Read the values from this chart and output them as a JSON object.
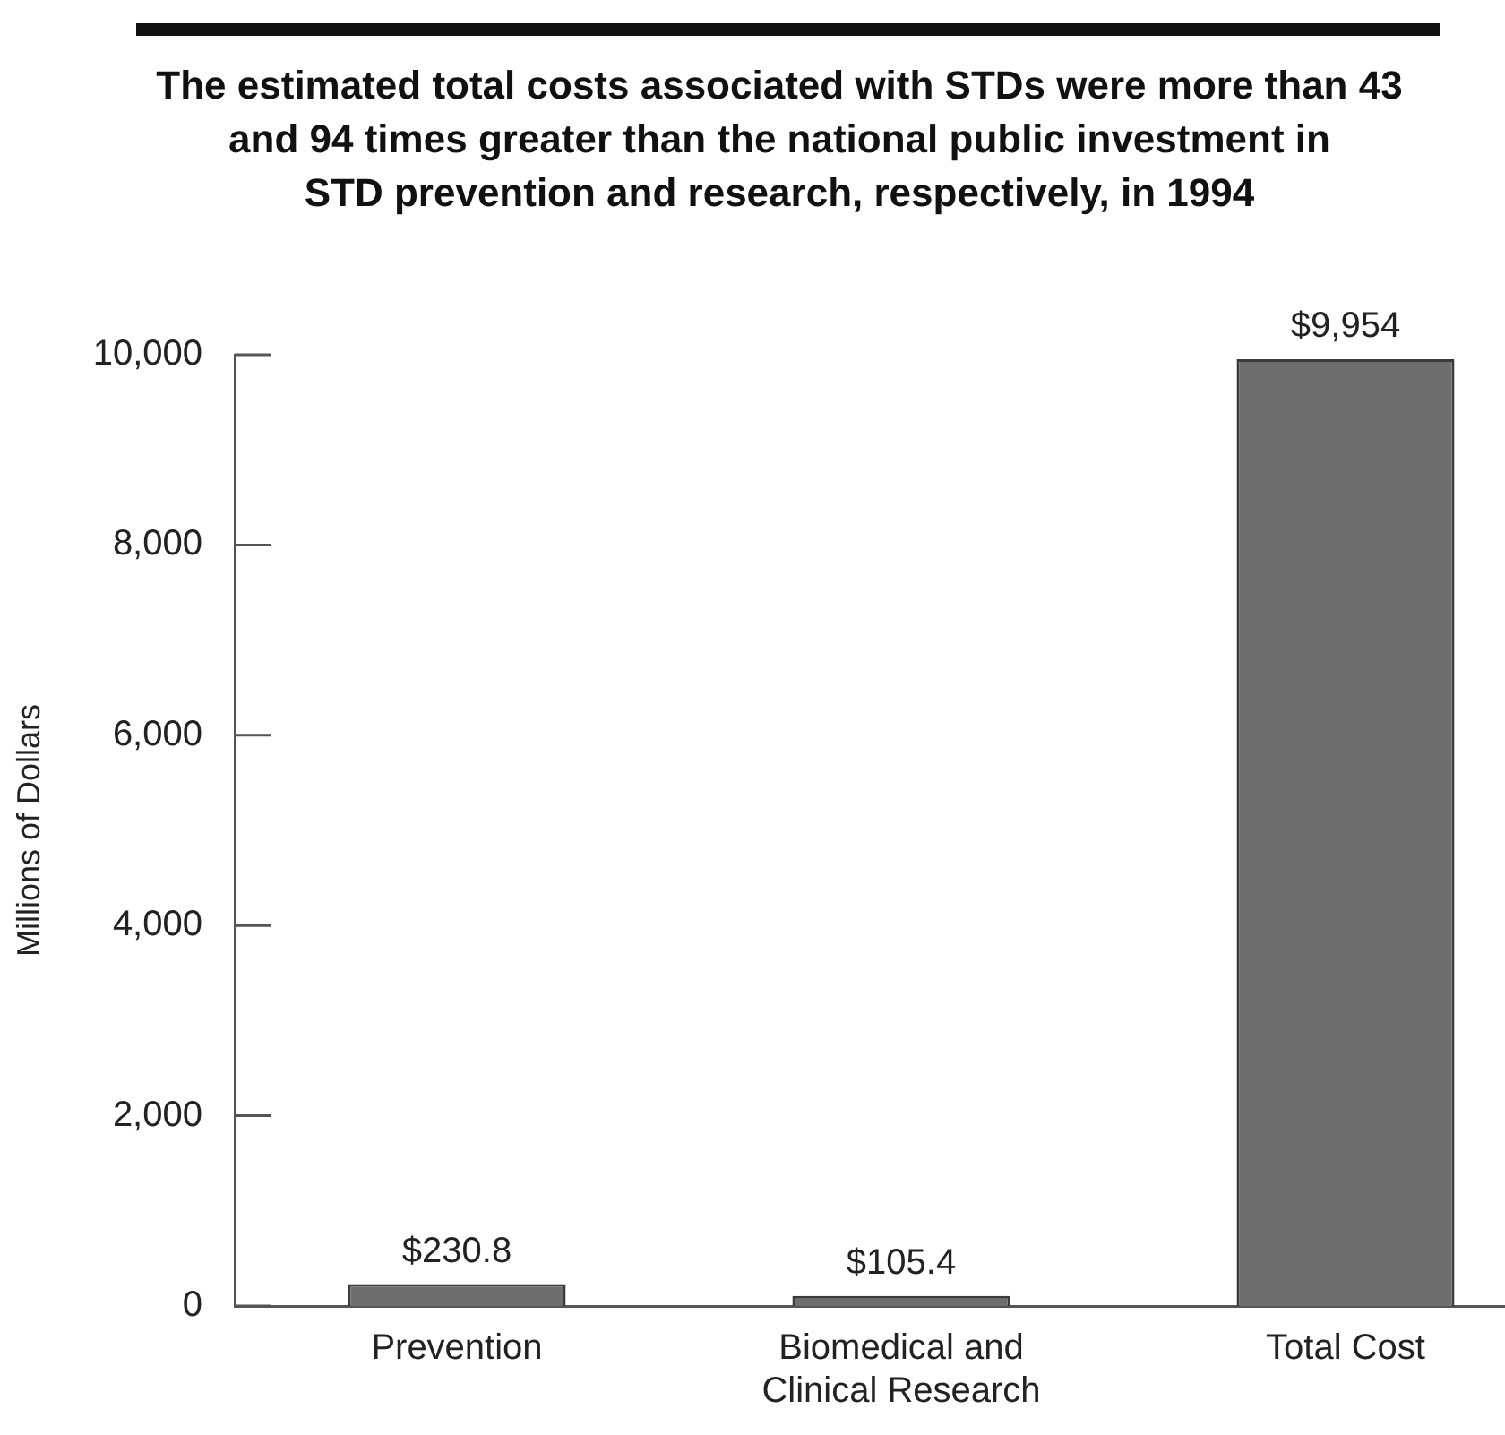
{
  "chart_data": {
    "type": "bar",
    "title": "The estimated total costs associated with STDs were more than 43\nand 94 times greater than the national public investment in\nSTD prevention and research, respectively, in 1994",
    "ylabel": "Millions of Dollars",
    "categories": [
      "Prevention",
      "Biomedical and Clinical Research",
      "Total Cost"
    ],
    "values": [
      230.8,
      105.4,
      9954
    ],
    "value_labels": [
      "$230.8",
      "$105.4",
      "$9,954"
    ],
    "color": "#6e6e6e",
    "ylim": [
      0,
      10000
    ],
    "yticks": [
      0,
      {
        "value": 2000,
        "label": "2,000"
      },
      {
        "value": 4000,
        "label": "4,000"
      },
      {
        "value": 6000,
        "label": "6,000"
      },
      {
        "value": 8000,
        "label": "8,000"
      },
      {
        "value": 10000,
        "label": "10,000"
      }
    ]
  }
}
